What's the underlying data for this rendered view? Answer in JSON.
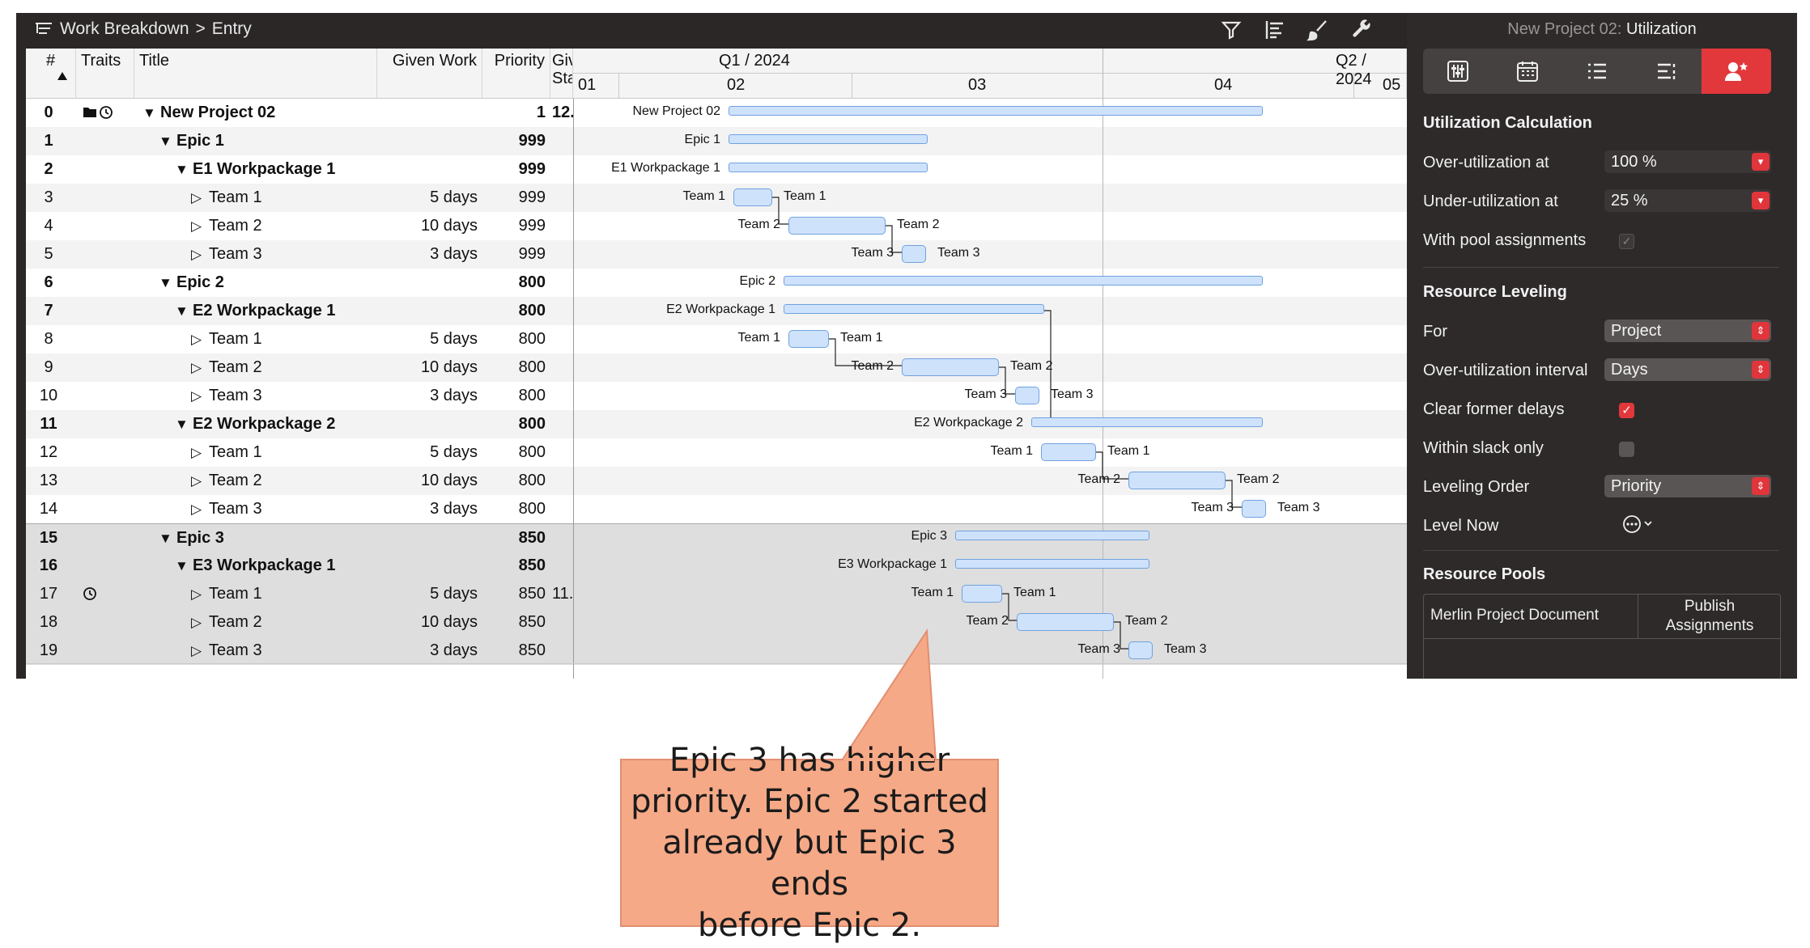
{
  "toolbar": {
    "breadcrumb_view": "Work Breakdown",
    "breadcrumb_sep": ">",
    "breadcrumb_page": "Entry",
    "icons": [
      "filter-icon",
      "bar-layout-icon",
      "brush-icon",
      "wrench-icon"
    ]
  },
  "table": {
    "headers": {
      "num": "#",
      "traits": "Traits",
      "title": "Title",
      "given_work": "Given Work",
      "priority": "Priority",
      "given_start_a": "Giv",
      "given_start_b": "Sta"
    },
    "rows": [
      {
        "num": "0",
        "title": "New Project 02",
        "given_work": "",
        "priority": "1",
        "start": "12.",
        "bold": true,
        "level": 0,
        "toggle": "expanded"
      },
      {
        "num": "1",
        "title": "Epic 1",
        "given_work": "",
        "priority": "999",
        "start": "",
        "bold": true,
        "level": 1,
        "toggle": "expanded"
      },
      {
        "num": "2",
        "title": "E1 Workpackage 1",
        "given_work": "",
        "priority": "999",
        "start": "",
        "bold": true,
        "level": 2,
        "toggle": "expanded"
      },
      {
        "num": "3",
        "title": "Team 1",
        "given_work": "5 days",
        "priority": "999",
        "start": "",
        "bold": false,
        "level": 3,
        "toggle": "collapsed"
      },
      {
        "num": "4",
        "title": "Team 2",
        "given_work": "10 days",
        "priority": "999",
        "start": "",
        "bold": false,
        "level": 3,
        "toggle": "collapsed"
      },
      {
        "num": "5",
        "title": "Team 3",
        "given_work": "3 days",
        "priority": "999",
        "start": "",
        "bold": false,
        "level": 3,
        "toggle": "collapsed"
      },
      {
        "num": "6",
        "title": "Epic 2",
        "given_work": "",
        "priority": "800",
        "start": "",
        "bold": true,
        "level": 1,
        "toggle": "expanded"
      },
      {
        "num": "7",
        "title": "E2 Workpackage 1",
        "given_work": "",
        "priority": "800",
        "start": "",
        "bold": true,
        "level": 2,
        "toggle": "expanded"
      },
      {
        "num": "8",
        "title": "Team 1",
        "given_work": "5 days",
        "priority": "800",
        "start": "",
        "bold": false,
        "level": 3,
        "toggle": "collapsed"
      },
      {
        "num": "9",
        "title": "Team 2",
        "given_work": "10 days",
        "priority": "800",
        "start": "",
        "bold": false,
        "level": 3,
        "toggle": "collapsed"
      },
      {
        "num": "10",
        "title": "Team 3",
        "given_work": "3 days",
        "priority": "800",
        "start": "",
        "bold": false,
        "level": 3,
        "toggle": "collapsed"
      },
      {
        "num": "11",
        "title": "E2 Workpackage 2",
        "given_work": "",
        "priority": "800",
        "start": "",
        "bold": true,
        "level": 2,
        "toggle": "expanded"
      },
      {
        "num": "12",
        "title": "Team 1",
        "given_work": "5 days",
        "priority": "800",
        "start": "",
        "bold": false,
        "level": 3,
        "toggle": "collapsed"
      },
      {
        "num": "13",
        "title": "Team 2",
        "given_work": "10 days",
        "priority": "800",
        "start": "",
        "bold": false,
        "level": 3,
        "toggle": "collapsed"
      },
      {
        "num": "14",
        "title": "Team 3",
        "given_work": "3 days",
        "priority": "800",
        "start": "",
        "bold": false,
        "level": 3,
        "toggle": "collapsed"
      },
      {
        "num": "15",
        "title": "Epic 3",
        "given_work": "",
        "priority": "850",
        "start": "",
        "bold": true,
        "level": 1,
        "toggle": "expanded"
      },
      {
        "num": "16",
        "title": "E3 Workpackage 1",
        "given_work": "",
        "priority": "850",
        "start": "",
        "bold": true,
        "level": 2,
        "toggle": "expanded"
      },
      {
        "num": "17",
        "title": "Team 1",
        "given_work": "5 days",
        "priority": "850",
        "start": "11.",
        "bold": false,
        "level": 3,
        "toggle": "collapsed"
      },
      {
        "num": "18",
        "title": "Team 2",
        "given_work": "10 days",
        "priority": "850",
        "start": "",
        "bold": false,
        "level": 3,
        "toggle": "collapsed"
      },
      {
        "num": "19",
        "title": "Team 3",
        "given_work": "3 days",
        "priority": "850",
        "start": "",
        "bold": false,
        "level": 3,
        "toggle": "collapsed"
      }
    ]
  },
  "gantt": {
    "quarters": [
      "Q1 / 2024",
      "Q2 / 2024"
    ],
    "months": [
      "01",
      "02",
      "03",
      "04",
      "05"
    ]
  },
  "inspector": {
    "title_project": "New Project 02:",
    "title_view": "Utilization",
    "tabs": [
      "sliders-icon",
      "calendar-icon",
      "list-icon",
      "list-settings-icon",
      "person-star-icon"
    ],
    "utilization": {
      "heading": "Utilization Calculation",
      "over_label": "Over-utilization at",
      "over_value": "100 %",
      "under_label": "Under-utilization at",
      "under_value": "25 %",
      "pool_label": "With pool assignments"
    },
    "leveling": {
      "heading": "Resource Leveling",
      "for_label": "For",
      "for_value": "Project",
      "interval_label": "Over-utilization interval",
      "interval_value": "Days",
      "clear_label": "Clear former delays",
      "slack_label": "Within slack only",
      "order_label": "Leveling Order",
      "order_value": "Priority",
      "level_now_label": "Level Now"
    },
    "pools": {
      "heading": "Resource Pools",
      "col1": "Merlin Project Document",
      "col2_a": "Publish",
      "col2_b": "Assignments"
    }
  },
  "callout": {
    "line1": "Epic 3 has higher",
    "line2": "priority. Epic 2 started",
    "line3": "already but Epic 3 ends",
    "line4": "before Epic 2."
  }
}
